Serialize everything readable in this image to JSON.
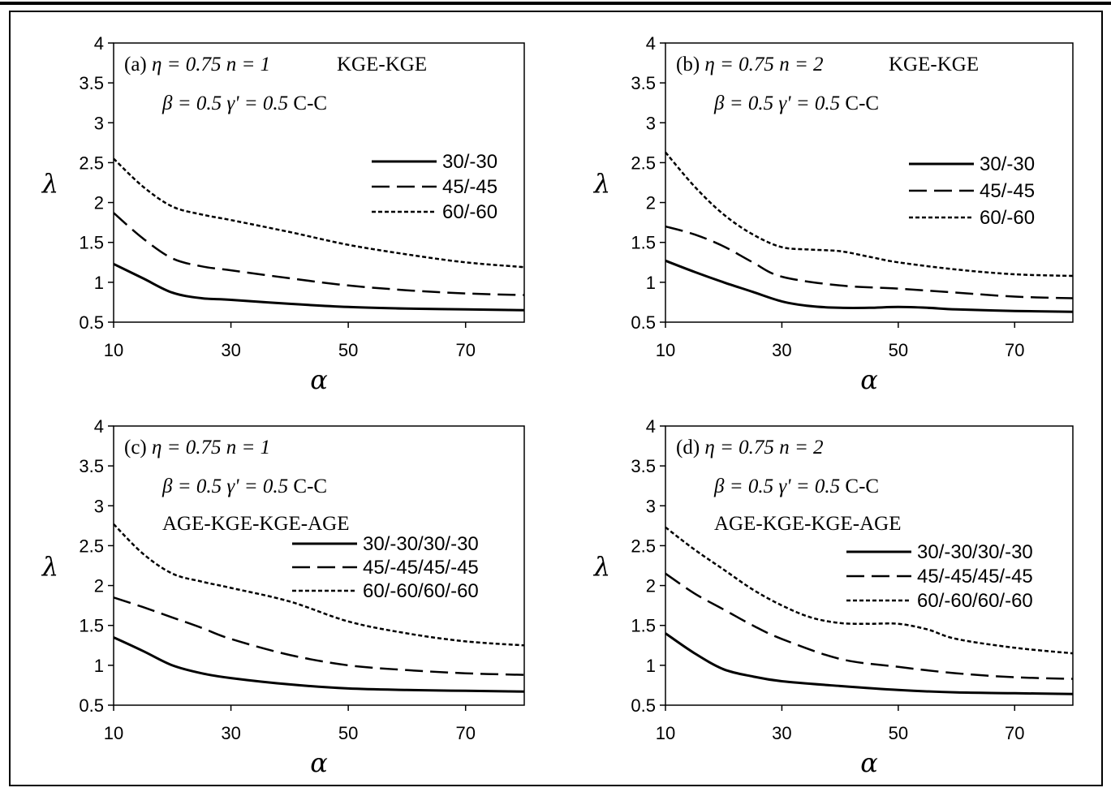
{
  "chart_data": [
    {
      "type": "line",
      "panel_label": "(a)",
      "params_line1": {
        "eta": "η = 0.75",
        "n": "n = 1",
        "tag": "KGE-KGE"
      },
      "params_line2": {
        "beta": "β = 0.5",
        "gamma": "γ' = 0.5",
        "bc": "C-C"
      },
      "scheme": "",
      "xlabel": "α",
      "ylabel": "λ",
      "xlim": [
        10,
        80
      ],
      "ylim": [
        0.5,
        4
      ],
      "xticks": [
        "10",
        "30",
        "50",
        "70"
      ],
      "yticks": [
        "0.5",
        "1",
        "1.5",
        "2",
        "2.5",
        "3",
        "3.5",
        "4"
      ],
      "grid": false,
      "legend_position": "right",
      "series": [
        {
          "name": "30/-30",
          "style": "solid",
          "x": [
            10,
            15,
            20,
            25,
            30,
            40,
            50,
            60,
            70,
            80
          ],
          "y": [
            1.23,
            1.05,
            0.87,
            0.8,
            0.78,
            0.73,
            0.69,
            0.67,
            0.66,
            0.65
          ]
        },
        {
          "name": "45/-45",
          "style": "dashed",
          "x": [
            10,
            15,
            20,
            25,
            30,
            40,
            50,
            60,
            70,
            80
          ],
          "y": [
            1.87,
            1.55,
            1.3,
            1.2,
            1.15,
            1.05,
            0.96,
            0.9,
            0.86,
            0.84
          ]
        },
        {
          "name": "60/-60",
          "style": "dotted",
          "x": [
            10,
            15,
            20,
            25,
            30,
            40,
            50,
            60,
            70,
            80
          ],
          "y": [
            2.55,
            2.2,
            1.95,
            1.85,
            1.78,
            1.63,
            1.47,
            1.35,
            1.25,
            1.19
          ]
        }
      ]
    },
    {
      "type": "line",
      "panel_label": "(b)",
      "params_line1": {
        "eta": "η = 0.75",
        "n": "n = 2",
        "tag": "KGE-KGE"
      },
      "params_line2": {
        "beta": "β = 0.5",
        "gamma": "γ' = 0.5",
        "bc": "C-C"
      },
      "scheme": "",
      "xlabel": "α",
      "ylabel": "λ",
      "xlim": [
        10,
        80
      ],
      "ylim": [
        0.5,
        4
      ],
      "xticks": [
        "10",
        "30",
        "50",
        "70"
      ],
      "yticks": [
        "0.5",
        "1",
        "1.5",
        "2",
        "2.5",
        "3",
        "3.5",
        "4"
      ],
      "grid": false,
      "legend_position": "right",
      "series": [
        {
          "name": "30/-30",
          "style": "solid",
          "x": [
            10,
            15,
            20,
            25,
            30,
            35,
            40,
            45,
            50,
            55,
            60,
            70,
            80
          ],
          "y": [
            1.27,
            1.13,
            1.0,
            0.88,
            0.76,
            0.7,
            0.68,
            0.68,
            0.69,
            0.68,
            0.66,
            0.64,
            0.63
          ]
        },
        {
          "name": "45/-45",
          "style": "dashed",
          "x": [
            10,
            15,
            20,
            25,
            30,
            40,
            50,
            60,
            70,
            80
          ],
          "y": [
            1.7,
            1.6,
            1.45,
            1.25,
            1.07,
            0.96,
            0.92,
            0.87,
            0.82,
            0.8
          ]
        },
        {
          "name": "60/-60",
          "style": "dotted",
          "x": [
            10,
            15,
            20,
            25,
            30,
            35,
            40,
            45,
            50,
            60,
            70,
            80
          ],
          "y": [
            2.63,
            2.2,
            1.85,
            1.6,
            1.44,
            1.41,
            1.39,
            1.32,
            1.25,
            1.16,
            1.1,
            1.08
          ]
        }
      ]
    },
    {
      "type": "line",
      "panel_label": "(c)",
      "params_line1": {
        "eta": "η = 0.75",
        "n": "n = 1",
        "tag": ""
      },
      "params_line2": {
        "beta": "β = 0.5",
        "gamma": "γ' = 0.5",
        "bc": "C-C"
      },
      "scheme": "AGE-KGE-KGE-AGE",
      "xlabel": "α",
      "ylabel": "λ",
      "xlim": [
        10,
        80
      ],
      "ylim": [
        0.5,
        4
      ],
      "xticks": [
        "10",
        "30",
        "50",
        "70"
      ],
      "yticks": [
        "0.5",
        "1",
        "1.5",
        "2",
        "2.5",
        "3",
        "3.5",
        "4"
      ],
      "grid": false,
      "legend_position": "right",
      "series": [
        {
          "name": "30/-30/30/-30",
          "style": "solid",
          "x": [
            10,
            15,
            20,
            25,
            30,
            40,
            50,
            60,
            70,
            80
          ],
          "y": [
            1.35,
            1.18,
            1.0,
            0.9,
            0.84,
            0.76,
            0.71,
            0.69,
            0.68,
            0.67
          ]
        },
        {
          "name": "45/-45/45/-45",
          "style": "dashed",
          "x": [
            10,
            15,
            20,
            25,
            30,
            40,
            50,
            60,
            70,
            80
          ],
          "y": [
            1.85,
            1.73,
            1.6,
            1.47,
            1.33,
            1.13,
            1.0,
            0.94,
            0.9,
            0.88
          ]
        },
        {
          "name": "60/-60/60/-60",
          "style": "dotted",
          "x": [
            10,
            15,
            20,
            25,
            30,
            40,
            50,
            60,
            70,
            80
          ],
          "y": [
            2.77,
            2.4,
            2.15,
            2.05,
            1.97,
            1.8,
            1.55,
            1.4,
            1.3,
            1.25
          ]
        }
      ]
    },
    {
      "type": "line",
      "panel_label": "(d)",
      "params_line1": {
        "eta": "η = 0.75",
        "n": "n = 2",
        "tag": ""
      },
      "params_line2": {
        "beta": "β = 0.5",
        "gamma": "γ' = 0.5",
        "bc": "C-C"
      },
      "scheme": "AGE-KGE-KGE-AGE",
      "xlabel": "α",
      "ylabel": "λ",
      "xlim": [
        10,
        80
      ],
      "ylim": [
        0.5,
        4
      ],
      "xticks": [
        "10",
        "30",
        "50",
        "70"
      ],
      "yticks": [
        "0.5",
        "1",
        "1.5",
        "2",
        "2.5",
        "3",
        "3.5",
        "4"
      ],
      "grid": false,
      "legend_position": "right",
      "series": [
        {
          "name": "30/-30/30/-30",
          "style": "solid",
          "x": [
            10,
            15,
            20,
            25,
            30,
            40,
            50,
            60,
            70,
            80
          ],
          "y": [
            1.4,
            1.15,
            0.95,
            0.86,
            0.8,
            0.74,
            0.69,
            0.66,
            0.65,
            0.64
          ]
        },
        {
          "name": "45/-45/45/-45",
          "style": "dashed",
          "x": [
            10,
            15,
            20,
            25,
            30,
            40,
            50,
            60,
            70,
            80
          ],
          "y": [
            2.15,
            1.9,
            1.7,
            1.5,
            1.33,
            1.08,
            0.98,
            0.9,
            0.85,
            0.83
          ]
        },
        {
          "name": "60/-60/60/-60",
          "style": "dotted",
          "x": [
            10,
            15,
            20,
            25,
            30,
            35,
            40,
            45,
            50,
            55,
            60,
            70,
            80
          ],
          "y": [
            2.73,
            2.45,
            2.2,
            1.95,
            1.75,
            1.6,
            1.53,
            1.52,
            1.52,
            1.45,
            1.33,
            1.22,
            1.15
          ]
        }
      ]
    }
  ]
}
